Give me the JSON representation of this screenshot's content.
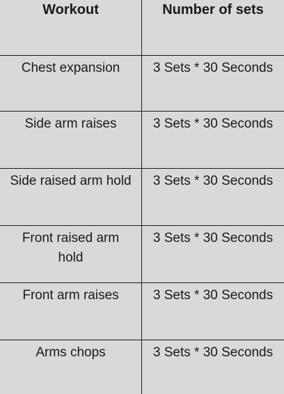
{
  "table": {
    "headers": [
      "Workout",
      "Number of sets"
    ],
    "rows": [
      [
        "Chest expansion",
        "3 Sets * 30 Seconds"
      ],
      [
        "Side arm raises",
        "3 Sets * 30 Seconds"
      ],
      [
        "Side raised arm hold",
        "3 Sets * 30 Seconds"
      ],
      [
        "Front raised arm hold",
        "3 Sets * 30 Seconds"
      ],
      [
        "Front arm raises",
        "3 Sets * 30 Seconds"
      ],
      [
        "Arms chops",
        "3 Sets * 30 Seconds"
      ]
    ]
  },
  "colors": {
    "background": "#d9d9d9",
    "border": "#1a1a1a",
    "text": "#1a1a1a"
  }
}
